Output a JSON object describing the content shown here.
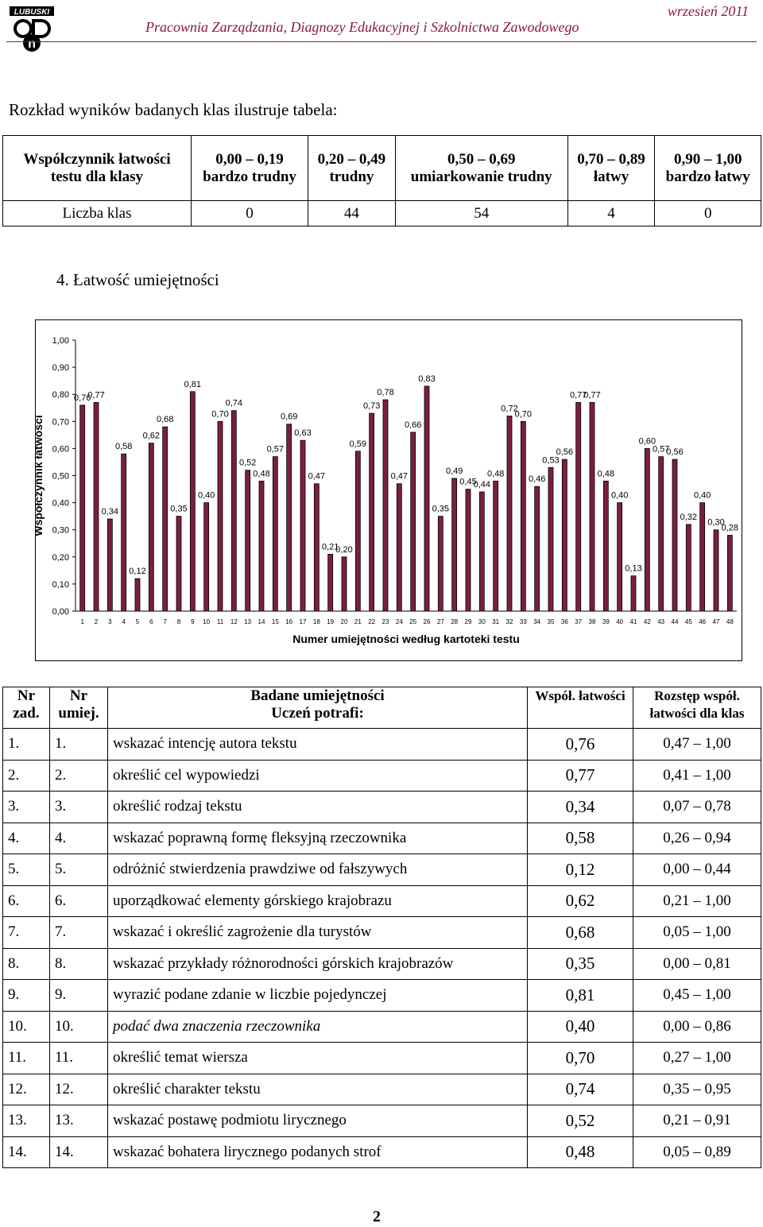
{
  "header": {
    "logo_text": "LUBUSKI ODN",
    "date": "wrzesień 2011",
    "title": "Pracownia Zarządzania, Diagnozy Edukacyjnej i Szkolnictwa Zawodowego"
  },
  "intro": "Rozkład wyników badanych klas ilustruje tabela:",
  "distribution_table": {
    "row_header": "Współczynnik łatwości testu dla klasy",
    "columns": [
      {
        "range": "0,00 – 0,19",
        "label": "bardzo trudny"
      },
      {
        "range": "0,20 – 0,49",
        "label": "trudny"
      },
      {
        "range": "0,50 – 0,69",
        "label": "umiarkowanie trudny"
      },
      {
        "range": "0,70 – 0,89",
        "label": "łatwy"
      },
      {
        "range": "0,90 – 1,00",
        "label": "bardzo łatwy"
      }
    ],
    "count_label": "Liczba klas",
    "counts": [
      "0",
      "44",
      "54",
      "4",
      "0"
    ]
  },
  "section_title": "4.  Łatwość umiejętności",
  "chart_data": {
    "type": "bar",
    "title": "",
    "ylabel": "Współczynnik łatwości",
    "xlabel": "Numer umiejętności według kartoteki testu",
    "ylim": [
      0,
      1
    ],
    "yticks": [
      "0,00",
      "0,10",
      "0,20",
      "0,30",
      "0,40",
      "0,50",
      "0,60",
      "0,70",
      "0,80",
      "0,90",
      "1,00"
    ],
    "categories": [
      "1",
      "2",
      "3",
      "4",
      "5",
      "6",
      "7",
      "8",
      "9",
      "10",
      "11",
      "12",
      "13",
      "14",
      "15",
      "16",
      "17",
      "18",
      "19",
      "20",
      "21",
      "22",
      "23",
      "24",
      "25",
      "26",
      "27",
      "28",
      "29",
      "30",
      "31",
      "32",
      "33",
      "34",
      "35",
      "36",
      "37",
      "38",
      "39",
      "40",
      "41",
      "42",
      "43",
      "44",
      "45",
      "46",
      "47",
      "48"
    ],
    "values": [
      0.76,
      0.77,
      0.34,
      0.58,
      0.12,
      0.62,
      0.68,
      0.35,
      0.81,
      0.4,
      0.7,
      0.74,
      0.52,
      0.48,
      0.57,
      0.69,
      0.63,
      0.47,
      0.21,
      0.2,
      0.59,
      0.73,
      0.78,
      0.47,
      0.66,
      0.83,
      0.35,
      0.49,
      0.45,
      0.44,
      0.48,
      0.72,
      0.7,
      0.46,
      0.53,
      0.56,
      0.77,
      0.77,
      0.48,
      0.4,
      0.13,
      0.6,
      0.57,
      0.56,
      0.32,
      0.4,
      0.3,
      0.28
    ],
    "labels": [
      "0,76",
      "0,77",
      "0,34",
      "0,58",
      "0,12",
      "0,62",
      "0,68",
      "0,35",
      "0,81",
      "0,40",
      "0,70",
      "0,74",
      "0,52",
      "0,48",
      "0,57",
      "0,69",
      "0,63",
      "0,47",
      "0,21",
      "0,20",
      "0,59",
      "0,73",
      "0,78",
      "0,47",
      "0,66",
      "0,83",
      "0,35",
      "0,49",
      "0,45",
      "0,44",
      "0,48",
      "0,72",
      "0,70",
      "0,46",
      "0,53",
      "0,56",
      "0,77",
      "0,77",
      "0,48",
      "0,40",
      "0,13",
      "0,60",
      "0,57",
      "0,56",
      "0,32",
      "0,40",
      "0,30",
      "0,28"
    ],
    "bar_color": "#7a1f3d",
    "grid": false
  },
  "skills_table": {
    "headers": {
      "nr_zad": "Nr zad.",
      "nr_umiej": "Nr umiej.",
      "skill_line1": "Badane umiejętności",
      "skill_line2": "Uczeń potrafi:",
      "coef": "Współ. łatwości",
      "range": "Rozstęp współ. łatwości dla klas"
    },
    "rows": [
      {
        "zad": "1.",
        "umiej": "1.",
        "skill": "wskazać intencję autora tekstu",
        "coef": "0,76",
        "range": "0,47 – 1,00",
        "italic": false
      },
      {
        "zad": "2.",
        "umiej": "2.",
        "skill": "określić cel wypowiedzi",
        "coef": "0,77",
        "range": "0,41 – 1,00",
        "italic": false
      },
      {
        "zad": "3.",
        "umiej": "3.",
        "skill": "określić rodzaj tekstu",
        "coef": "0,34",
        "range": "0,07 – 0,78",
        "italic": false
      },
      {
        "zad": "4.",
        "umiej": "4.",
        "skill": "wskazać poprawną formę fleksyjną rzeczownika",
        "coef": "0,58",
        "range": "0,26 – 0,94",
        "italic": false
      },
      {
        "zad": "5.",
        "umiej": "5.",
        "skill": "odróżnić stwierdzenia prawdziwe od fałszywych",
        "coef": "0,12",
        "range": "0,00 – 0,44",
        "italic": false
      },
      {
        "zad": "6.",
        "umiej": "6.",
        "skill": "uporządkować elementy górskiego krajobrazu",
        "coef": "0,62",
        "range": "0,21 – 1,00",
        "italic": false
      },
      {
        "zad": "7.",
        "umiej": "7.",
        "skill": "wskazać i określić zagrożenie dla turystów",
        "coef": "0,68",
        "range": "0,05 – 1,00",
        "italic": false
      },
      {
        "zad": "8.",
        "umiej": "8.",
        "skill": "wskazać przykłady różnorodności górskich krajobrazów",
        "coef": "0,35",
        "range": "0,00 – 0,81",
        "italic": false
      },
      {
        "zad": "9.",
        "umiej": "9.",
        "skill": "wyrazić podane zdanie w liczbie pojedynczej",
        "coef": "0,81",
        "range": "0,45 – 1,00",
        "italic": false
      },
      {
        "zad": "10.",
        "umiej": "10.",
        "skill": "podać dwa znaczenia rzeczownika",
        "coef": "0,40",
        "range": "0,00 – 0,86",
        "italic": true
      },
      {
        "zad": "11.",
        "umiej": "11.",
        "skill": "określić temat wiersza",
        "coef": "0,70",
        "range": "0,27 – 1,00",
        "italic": false
      },
      {
        "zad": "12.",
        "umiej": "12.",
        "skill": "określić charakter tekstu",
        "coef": "0,74",
        "range": "0,35 – 0,95",
        "italic": false
      },
      {
        "zad": "13.",
        "umiej": "13.",
        "skill": "wskazać postawę podmiotu lirycznego",
        "coef": "0,52",
        "range": "0,21 – 0,91",
        "italic": false
      },
      {
        "zad": "14.",
        "umiej": "14.",
        "skill": "wskazać bohatera lirycznego podanych strof",
        "coef": "0,48",
        "range": "0,05 – 0,89",
        "italic": false
      }
    ]
  },
  "page_number": "2"
}
